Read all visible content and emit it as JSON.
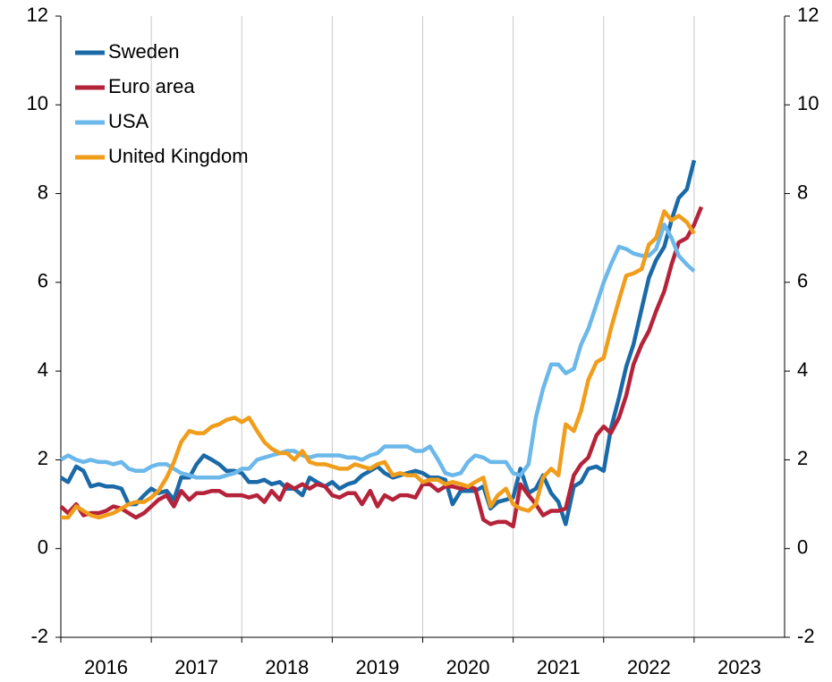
{
  "chart_data": {
    "type": "line",
    "x": [
      2016,
      2016.08,
      2016.17,
      2016.25,
      2016.33,
      2016.42,
      2016.5,
      2016.58,
      2016.67,
      2016.75,
      2016.83,
      2016.92,
      2017,
      2017.08,
      2017.17,
      2017.25,
      2017.33,
      2017.42,
      2017.5,
      2017.58,
      2017.67,
      2017.75,
      2017.83,
      2017.92,
      2018,
      2018.08,
      2018.17,
      2018.25,
      2018.33,
      2018.42,
      2018.5,
      2018.58,
      2018.67,
      2018.75,
      2018.83,
      2018.92,
      2019,
      2019.08,
      2019.17,
      2019.25,
      2019.33,
      2019.42,
      2019.5,
      2019.58,
      2019.67,
      2019.75,
      2019.83,
      2019.92,
      2020,
      2020.08,
      2020.17,
      2020.25,
      2020.33,
      2020.42,
      2020.5,
      2020.58,
      2020.67,
      2020.75,
      2020.83,
      2020.92,
      2021,
      2021.08,
      2021.17,
      2021.25,
      2021.33,
      2021.42,
      2021.5,
      2021.58,
      2021.67,
      2021.75,
      2021.83,
      2021.92,
      2022,
      2022.08,
      2022.17,
      2022.25,
      2022.33,
      2022.42,
      2022.5,
      2022.58,
      2022.67,
      2022.75,
      2022.83,
      2022.92,
      2023,
      2023.08
    ],
    "series": [
      {
        "name": "Sweden",
        "color": "#1b6aa8",
        "values": [
          1.6,
          1.5,
          1.85,
          1.75,
          1.4,
          1.45,
          1.4,
          1.4,
          1.35,
          1.0,
          1.0,
          1.2,
          1.35,
          1.25,
          1.3,
          1.1,
          1.6,
          1.6,
          1.9,
          2.1,
          2.0,
          1.9,
          1.75,
          1.75,
          1.7,
          1.5,
          1.5,
          1.55,
          1.45,
          1.5,
          1.35,
          1.35,
          1.2,
          1.6,
          1.5,
          1.4,
          1.5,
          1.35,
          1.45,
          1.5,
          1.65,
          1.75,
          1.85,
          1.7,
          1.6,
          1.65,
          1.7,
          1.75,
          1.7,
          1.6,
          1.6,
          1.55,
          1.0,
          1.3,
          1.3,
          1.3,
          1.4,
          0.9,
          1.05,
          1.1,
          1.15,
          1.8,
          1.25,
          1.35,
          1.65,
          1.25,
          1.05,
          0.55,
          1.4,
          1.5,
          1.8,
          1.85,
          1.75,
          2.7,
          3.4,
          4.1,
          4.6,
          5.4,
          6.1,
          6.5,
          6.8,
          7.4,
          7.9,
          8.1,
          8.75,
          null
        ]
      },
      {
        "name": "Euro area",
        "color": "#b5233a",
        "values": [
          0.95,
          0.8,
          1.0,
          0.75,
          0.8,
          0.8,
          0.85,
          0.95,
          0.9,
          0.8,
          0.7,
          0.8,
          0.95,
          1.1,
          1.2,
          0.95,
          1.3,
          1.1,
          1.25,
          1.25,
          1.3,
          1.3,
          1.2,
          1.2,
          1.2,
          1.15,
          1.2,
          1.05,
          1.3,
          1.1,
          1.45,
          1.35,
          1.45,
          1.35,
          1.45,
          1.4,
          1.2,
          1.15,
          1.25,
          1.25,
          1.0,
          1.3,
          0.95,
          1.2,
          1.1,
          1.2,
          1.2,
          1.15,
          1.45,
          1.45,
          1.3,
          1.4,
          1.4,
          1.35,
          1.4,
          1.35,
          0.65,
          0.55,
          0.6,
          0.6,
          0.5,
          1.45,
          1.2,
          1.0,
          0.75,
          0.85,
          0.85,
          0.9,
          1.65,
          1.9,
          2.05,
          2.55,
          2.75,
          2.6,
          2.95,
          3.45,
          4.15,
          4.6,
          4.9,
          5.35,
          5.8,
          6.4,
          6.9,
          7.0,
          7.3,
          7.7
        ]
      },
      {
        "name": "USA",
        "color": "#6cb8ea",
        "values": [
          2.0,
          2.1,
          2.0,
          1.95,
          2.0,
          1.95,
          1.95,
          1.9,
          1.95,
          1.8,
          1.75,
          1.75,
          1.85,
          1.9,
          1.9,
          1.8,
          1.7,
          1.65,
          1.6,
          1.6,
          1.6,
          1.6,
          1.65,
          1.7,
          1.8,
          1.8,
          2.0,
          2.05,
          2.1,
          2.15,
          2.2,
          2.2,
          2.1,
          2.05,
          2.1,
          2.1,
          2.1,
          2.1,
          2.05,
          2.05,
          2.0,
          2.1,
          2.15,
          2.3,
          2.3,
          2.3,
          2.3,
          2.2,
          2.2,
          2.3,
          2.0,
          1.7,
          1.65,
          1.7,
          1.95,
          2.1,
          2.05,
          1.95,
          1.95,
          1.95,
          1.7,
          1.65,
          1.9,
          2.95,
          3.6,
          4.15,
          4.15,
          3.95,
          4.05,
          4.6,
          4.95,
          5.5,
          6.0,
          6.4,
          6.8,
          6.75,
          6.65,
          6.6,
          6.6,
          6.75,
          7.3,
          7.0,
          6.6,
          6.4,
          6.25,
          null
        ]
      },
      {
        "name": "United Kingdom",
        "color": "#f09d1c",
        "values": [
          0.7,
          0.7,
          0.95,
          0.85,
          0.75,
          0.7,
          0.75,
          0.8,
          0.9,
          1.0,
          1.05,
          1.05,
          1.15,
          1.3,
          1.6,
          1.95,
          2.4,
          2.65,
          2.6,
          2.6,
          2.75,
          2.8,
          2.9,
          2.95,
          2.85,
          2.95,
          2.65,
          2.4,
          2.25,
          2.15,
          2.15,
          2.0,
          2.2,
          1.95,
          1.9,
          1.9,
          1.85,
          1.8,
          1.8,
          1.9,
          1.85,
          1.8,
          1.9,
          1.95,
          1.65,
          1.7,
          1.65,
          1.65,
          1.5,
          1.55,
          1.55,
          1.45,
          1.5,
          1.45,
          1.4,
          1.5,
          1.6,
          0.95,
          1.2,
          1.35,
          1.0,
          0.9,
          0.85,
          1.0,
          1.6,
          1.8,
          1.65,
          2.8,
          2.65,
          3.1,
          3.8,
          4.2,
          4.3,
          4.95,
          5.6,
          6.15,
          6.2,
          6.3,
          6.85,
          7.0,
          7.6,
          7.4,
          7.5,
          7.35,
          7.1,
          null
        ]
      }
    ],
    "xlim": [
      2016,
      2024
    ],
    "xticks": [
      2016,
      2017,
      2018,
      2019,
      2020,
      2021,
      2022,
      2023
    ],
    "ylim": [
      -2,
      12
    ],
    "yticks": [
      -2,
      0,
      2,
      4,
      6,
      8,
      10,
      12
    ],
    "grid": "x",
    "legend": "upper left"
  }
}
